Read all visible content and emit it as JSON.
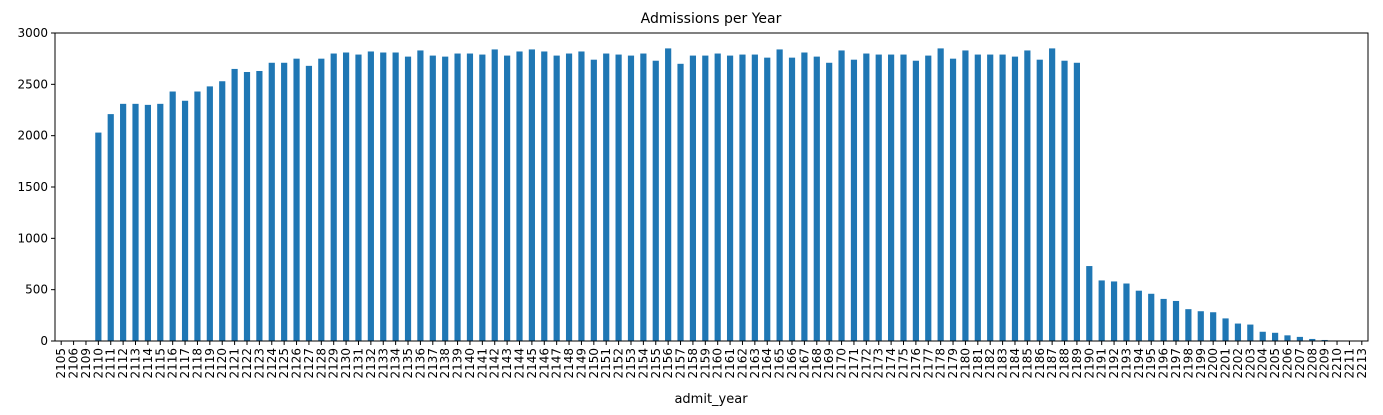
{
  "chart_data": {
    "type": "bar",
    "title": "Admissions per Year",
    "xlabel": "admit_year",
    "ylabel": "",
    "ylim": [
      0,
      3000
    ],
    "yticks": [
      0,
      500,
      1000,
      1500,
      2000,
      2500,
      3000
    ],
    "grid": false,
    "legend": "none",
    "bar_color": "#1f77b4",
    "categories": [
      "2105",
      "2106",
      "2109",
      "2110",
      "2111",
      "2112",
      "2113",
      "2114",
      "2115",
      "2116",
      "2117",
      "2118",
      "2119",
      "2120",
      "2121",
      "2122",
      "2123",
      "2124",
      "2125",
      "2126",
      "2127",
      "2128",
      "2129",
      "2130",
      "2131",
      "2132",
      "2133",
      "2134",
      "2135",
      "2136",
      "2137",
      "2138",
      "2139",
      "2140",
      "2141",
      "2142",
      "2143",
      "2144",
      "2145",
      "2146",
      "2147",
      "2148",
      "2149",
      "2150",
      "2151",
      "2152",
      "2153",
      "2154",
      "2155",
      "2156",
      "2157",
      "2158",
      "2159",
      "2160",
      "2161",
      "2162",
      "2163",
      "2164",
      "2165",
      "2166",
      "2167",
      "2168",
      "2169",
      "2170",
      "2171",
      "2172",
      "2173",
      "2174",
      "2175",
      "2176",
      "2177",
      "2178",
      "2179",
      "2180",
      "2181",
      "2182",
      "2183",
      "2184",
      "2185",
      "2186",
      "2187",
      "2188",
      "2189",
      "2190",
      "2191",
      "2192",
      "2193",
      "2194",
      "2195",
      "2196",
      "2197",
      "2198",
      "2199",
      "2200",
      "2201",
      "2202",
      "2203",
      "2204",
      "2205",
      "2206",
      "2207",
      "2208",
      "2209",
      "2210",
      "2211",
      "2213"
    ],
    "values": [
      1,
      1,
      1,
      2030,
      2210,
      2310,
      2310,
      2300,
      2310,
      2430,
      2340,
      2430,
      2480,
      2530,
      2650,
      2620,
      2630,
      2710,
      2710,
      2750,
      2680,
      2750,
      2800,
      2810,
      2790,
      2820,
      2810,
      2810,
      2770,
      2830,
      2780,
      2770,
      2800,
      2800,
      2790,
      2840,
      2780,
      2820,
      2840,
      2820,
      2780,
      2800,
      2820,
      2740,
      2800,
      2790,
      2780,
      2800,
      2730,
      2850,
      2700,
      2780,
      2780,
      2800,
      2780,
      2790,
      2790,
      2760,
      2840,
      2760,
      2810,
      2770,
      2710,
      2830,
      2740,
      2800,
      2790,
      2790,
      2790,
      2730,
      2780,
      2850,
      2750,
      2830,
      2790,
      2790,
      2790,
      2770,
      2830,
      2740,
      2850,
      2730,
      2710,
      730,
      590,
      580,
      560,
      490,
      460,
      410,
      390,
      310,
      290,
      280,
      220,
      170,
      160,
      90,
      80,
      55,
      40,
      20,
      10,
      5,
      2,
      1
    ]
  }
}
